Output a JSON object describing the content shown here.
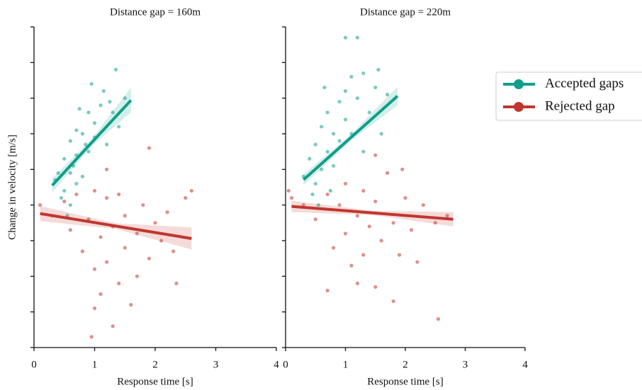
{
  "chart_data": [
    {
      "type": "scatter",
      "title": "Distance gap = 160m",
      "xlabel": "Response time [s]",
      "ylabel": "Change in velocity [m/s]",
      "xlim": [
        0,
        4
      ],
      "xticks": [
        0,
        1,
        2,
        3,
        4
      ],
      "ylim": [
        -4,
        5
      ],
      "yticks": [
        -4,
        -3,
        -2,
        -1,
        0,
        1,
        2,
        3,
        4,
        5
      ],
      "ytick_labels": false,
      "legend": "right",
      "series": [
        {
          "name": "Accepted gaps",
          "color": "#0f9e8a",
          "x": [
            0.4,
            0.5,
            0.5,
            0.6,
            0.6,
            0.7,
            0.7,
            0.8,
            0.8,
            0.9,
            0.9,
            1.0,
            1.0,
            1.1,
            1.2,
            1.3,
            1.35,
            1.5,
            1.4,
            0.55,
            0.45,
            0.65,
            0.75,
            0.85,
            1.15,
            0.35,
            0.6,
            0.95,
            1.25,
            0.7
          ],
          "values": [
            0.9,
            1.3,
            0.4,
            1.8,
            0.9,
            2.1,
            1.4,
            2.0,
            0.8,
            2.6,
            1.5,
            1.9,
            2.3,
            2.8,
            1.7,
            2.6,
            3.8,
            3.0,
            2.2,
            -0.3,
            0.2,
            1.1,
            2.7,
            1.7,
            3.2,
            0.7,
            0.0,
            3.4,
            2.9,
            0.6
          ],
          "fit_x": [
            0.3,
            0.95,
            1.6
          ],
          "fit_values": [
            0.55,
            1.75,
            2.94
          ],
          "fit_ci_low": [
            0.35,
            1.65,
            2.6
          ],
          "fit_ci_high": [
            0.75,
            1.85,
            3.3
          ]
        },
        {
          "name": "Rejected gap",
          "color": "#c0362f",
          "x": [
            0.1,
            0.3,
            0.5,
            0.6,
            0.7,
            0.8,
            0.9,
            1.0,
            1.0,
            1.1,
            1.1,
            1.2,
            1.2,
            1.3,
            1.3,
            1.4,
            1.4,
            1.5,
            1.5,
            1.6,
            1.7,
            1.8,
            1.9,
            2.0,
            2.1,
            2.2,
            2.3,
            2.5,
            2.6,
            1.0,
            1.9,
            1.7,
            0.95,
            2.35,
            1.2
          ],
          "values": [
            0.0,
            -0.3,
            0.1,
            -0.7,
            0.3,
            -1.3,
            -0.4,
            -1.8,
            0.4,
            -2.5,
            -0.9,
            -1.6,
            0.2,
            -3.4,
            -0.6,
            -2.2,
            0.3,
            -1.2,
            -0.3,
            -2.8,
            -0.8,
            0.0,
            -1.5,
            -0.5,
            -1.0,
            -0.2,
            -1.3,
            0.2,
            0.4,
            -2.9,
            1.6,
            -2.0,
            -3.7,
            -2.2,
            1.0
          ],
          "fit_x": [
            0.1,
            1.35,
            2.6
          ],
          "fit_values": [
            -0.24,
            -0.59,
            -0.94
          ],
          "fit_ci_low": [
            -0.45,
            -0.67,
            -1.25
          ],
          "fit_ci_high": [
            -0.03,
            -0.51,
            -0.63
          ]
        }
      ]
    },
    {
      "type": "scatter",
      "title": "Distance gap = 220m",
      "xlabel": "Response time [s]",
      "xlim": [
        0,
        4
      ],
      "xticks": [
        0,
        1,
        2,
        3,
        4
      ],
      "ylim": [
        -4,
        5
      ],
      "yticks": [
        -4,
        -3,
        -2,
        -1,
        0,
        1,
        2,
        3,
        4,
        5
      ],
      "ytick_labels": false,
      "series": [
        {
          "name": "Accepted gaps",
          "color": "#0f9e8a",
          "x": [
            0.3,
            0.4,
            0.5,
            0.5,
            0.6,
            0.6,
            0.7,
            0.7,
            0.8,
            0.8,
            0.9,
            0.9,
            1.0,
            1.0,
            1.1,
            1.1,
            1.2,
            1.3,
            1.4,
            1.5,
            1.6,
            1.7,
            1.3,
            0.55,
            0.45,
            1.0,
            1.2,
            0.65,
            1.55,
            0.75
          ],
          "values": [
            0.8,
            1.3,
            0.6,
            1.7,
            2.2,
            1.0,
            1.5,
            2.6,
            2.0,
            1.1,
            2.9,
            1.8,
            2.4,
            3.2,
            2.0,
            3.6,
            3.0,
            3.7,
            2.6,
            3.3,
            2.0,
            3.1,
            1.5,
            0.0,
            0.3,
            4.7,
            4.7,
            3.3,
            3.8,
            0.4
          ],
          "fit_x": [
            0.3,
            1.085,
            1.87
          ],
          "fit_values": [
            0.71,
            1.885,
            3.06
          ],
          "fit_ci_low": [
            0.55,
            1.8,
            2.8
          ],
          "fit_ci_high": [
            0.87,
            1.97,
            3.32
          ]
        },
        {
          "name": "Rejected gap",
          "color": "#c0362f",
          "x": [
            0.1,
            0.3,
            0.5,
            0.7,
            0.8,
            0.9,
            1.0,
            1.0,
            1.1,
            1.2,
            1.3,
            1.3,
            1.4,
            1.5,
            1.5,
            1.6,
            1.7,
            1.8,
            1.9,
            2.0,
            2.1,
            2.2,
            2.3,
            2.5,
            2.7,
            0.7,
            1.8,
            0.05,
            1.95,
            1.5,
            2.55,
            1.2
          ],
          "values": [
            0.2,
            0.0,
            -0.4,
            0.3,
            -1.2,
            0.0,
            -0.8,
            0.6,
            -1.7,
            -0.3,
            0.4,
            -1.4,
            -0.6,
            0.1,
            -2.3,
            -1.0,
            0.9,
            -0.5,
            -1.4,
            0.2,
            -0.7,
            -1.6,
            0.0,
            -0.5,
            -0.3,
            -2.4,
            -2.7,
            0.4,
            1.0,
            1.4,
            -3.2,
            -2.2
          ],
          "fit_x": [
            0.1,
            1.45,
            2.8
          ],
          "fit_values": [
            -0.04,
            -0.22,
            -0.4
          ],
          "fit_ci_low": [
            -0.2,
            -0.28,
            -0.6
          ],
          "fit_ci_high": [
            0.12,
            -0.16,
            -0.2
          ]
        }
      ]
    }
  ]
}
